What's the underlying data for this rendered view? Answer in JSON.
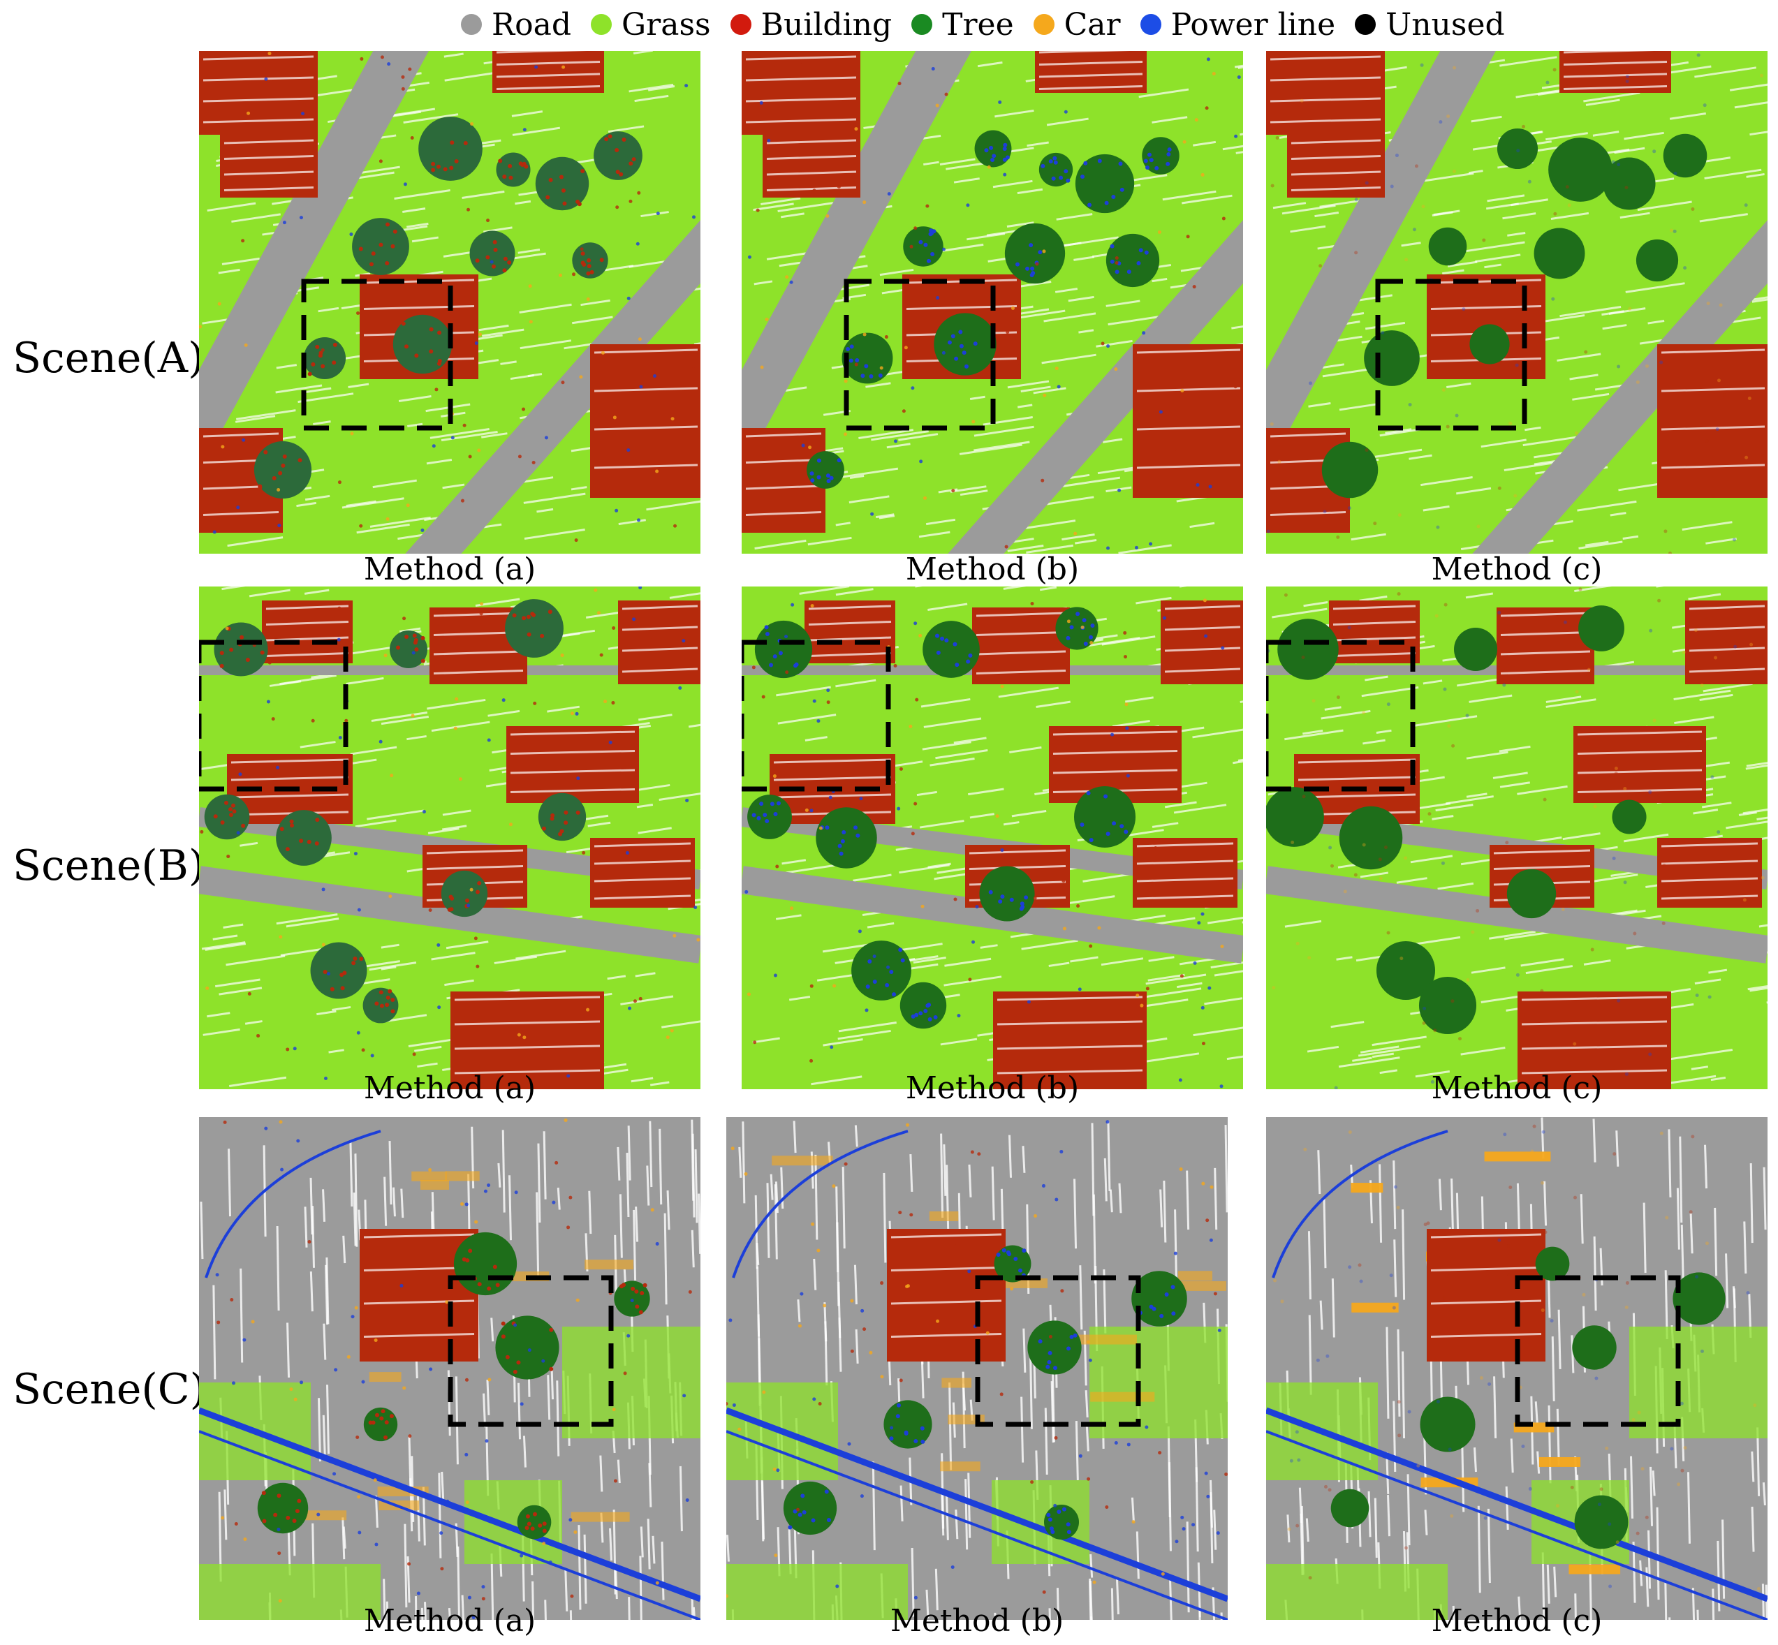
{
  "legend": [
    {
      "label": "Road",
      "color": "#9b9b9b"
    },
    {
      "label": "Grass",
      "color": "#8ee22a"
    },
    {
      "label": "Building",
      "color": "#d21a0e"
    },
    {
      "label": "Tree",
      "color": "#1a8a22"
    },
    {
      "label": "Car",
      "color": "#f5a81c"
    },
    {
      "label": "Power line",
      "color": "#1c4de6"
    },
    {
      "label": "Unused",
      "color": "#000000"
    }
  ],
  "class_colors": {
    "road": "#9b9b9b",
    "grass": "#8ee22a",
    "building": "#b52a0c",
    "tree": "#1e6e1a",
    "car": "#f5a81c",
    "power_line": "#1c3fd9",
    "unused": "#000000"
  },
  "scenes": [
    {
      "label": "Scene(A)",
      "captions": [
        "Method  (a)",
        "Method (b)",
        "Method (c)"
      ]
    },
    {
      "label": "Scene(B)",
      "captions": [
        "Method (a)",
        "Method (b)",
        "Method (c)"
      ]
    },
    {
      "label": "Scene(C)",
      "captions": [
        "Method (a)",
        "Method (b)",
        "Method (c)"
      ]
    }
  ]
}
